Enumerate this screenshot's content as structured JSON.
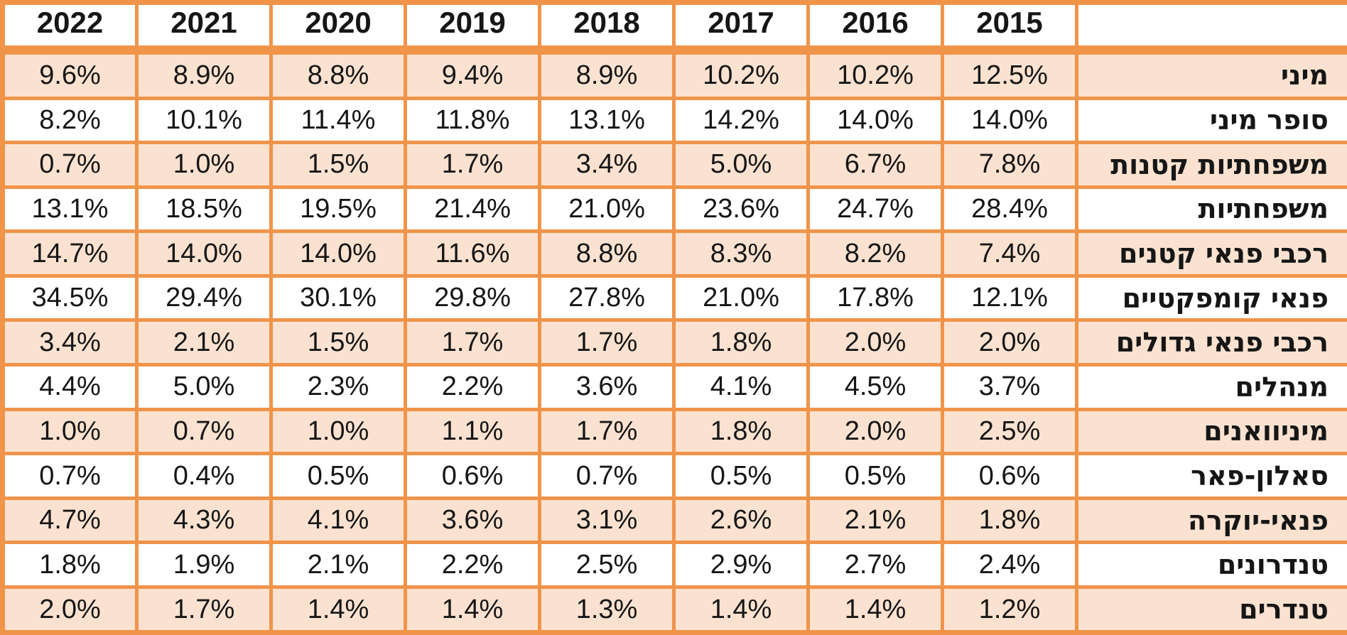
{
  "chart_data": {
    "type": "table",
    "direction": "rtl",
    "corner_label": "",
    "years": [
      "2022",
      "2021",
      "2020",
      "2019",
      "2018",
      "2017",
      "2016",
      "2015"
    ],
    "rows": [
      {
        "label": "מיני",
        "values": [
          "9.6%",
          "8.9%",
          "8.8%",
          "9.4%",
          "8.9%",
          "10.2%",
          "10.2%",
          "12.5%"
        ]
      },
      {
        "label": "סופר מיני",
        "values": [
          "8.2%",
          "10.1%",
          "11.4%",
          "11.8%",
          "13.1%",
          "14.2%",
          "14.0%",
          "14.0%"
        ]
      },
      {
        "label": "משפחתיות קטנות",
        "values": [
          "0.7%",
          "1.0%",
          "1.5%",
          "1.7%",
          "3.4%",
          "5.0%",
          "6.7%",
          "7.8%"
        ]
      },
      {
        "label": "משפחתיות",
        "values": [
          "13.1%",
          "18.5%",
          "19.5%",
          "21.4%",
          "21.0%",
          "23.6%",
          "24.7%",
          "28.4%"
        ]
      },
      {
        "label": "רכבי פנאי קטנים",
        "values": [
          "14.7%",
          "14.0%",
          "14.0%",
          "11.6%",
          "8.8%",
          "8.3%",
          "8.2%",
          "7.4%"
        ]
      },
      {
        "label": "פנאי קומפקטיים",
        "values": [
          "34.5%",
          "29.4%",
          "30.1%",
          "29.8%",
          "27.8%",
          "21.0%",
          "17.8%",
          "12.1%"
        ]
      },
      {
        "label": "רכבי פנאי גדולים",
        "values": [
          "3.4%",
          "2.1%",
          "1.5%",
          "1.7%",
          "1.7%",
          "1.8%",
          "2.0%",
          "2.0%"
        ]
      },
      {
        "label": "מנהלים",
        "values": [
          "4.4%",
          "5.0%",
          "2.3%",
          "2.2%",
          "3.6%",
          "4.1%",
          "4.5%",
          "3.7%"
        ]
      },
      {
        "label": "מיניוואנים",
        "values": [
          "1.0%",
          "0.7%",
          "1.0%",
          "1.1%",
          "1.7%",
          "1.8%",
          "2.0%",
          "2.5%"
        ]
      },
      {
        "label": "סאלון-פאר",
        "values": [
          "0.7%",
          "0.4%",
          "0.5%",
          "0.6%",
          "0.7%",
          "0.5%",
          "0.5%",
          "0.6%"
        ]
      },
      {
        "label": "פנאי-יוקרה",
        "values": [
          "4.7%",
          "4.3%",
          "4.1%",
          "3.6%",
          "3.1%",
          "2.6%",
          "2.1%",
          "1.8%"
        ]
      },
      {
        "label": "טנדרונים",
        "values": [
          "1.8%",
          "1.9%",
          "2.1%",
          "2.2%",
          "2.5%",
          "2.9%",
          "2.7%",
          "2.4%"
        ]
      },
      {
        "label": "טנדרים",
        "values": [
          "2.0%",
          "1.7%",
          "1.4%",
          "1.4%",
          "1.3%",
          "1.4%",
          "1.4%",
          "1.2%"
        ]
      }
    ]
  },
  "colors": {
    "border": "#F0944A",
    "stripe_fill": "#FBE2D0",
    "cell_fill": "#FFFFFF",
    "text": "#161616"
  }
}
